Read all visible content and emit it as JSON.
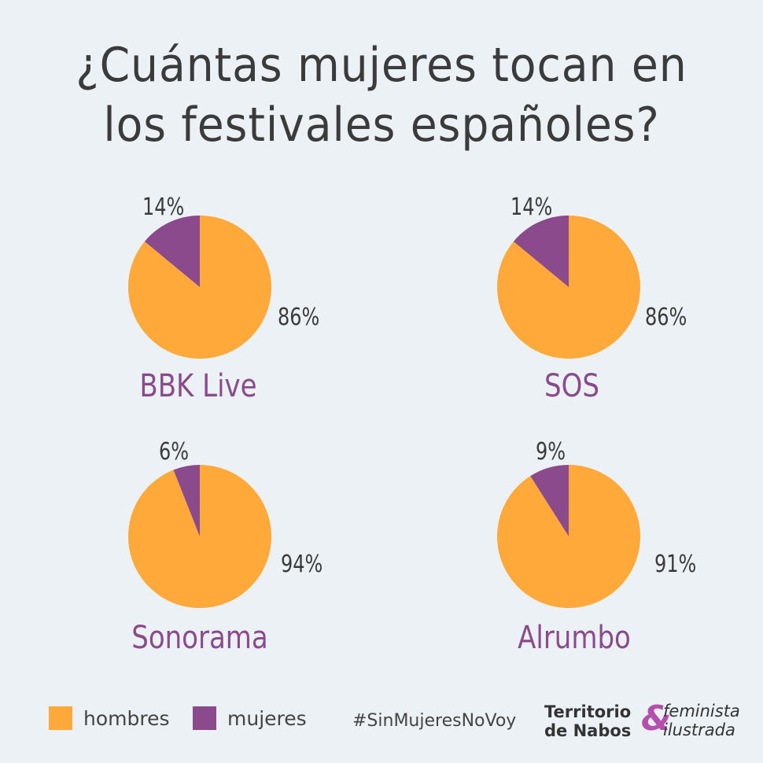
{
  "title_line1": "¿Cuántas mujeres tocan en",
  "title_line2": "los festivales españoles?",
  "colors": {
    "hombres": "#FFA93A",
    "mujeres": "#8B4A8C",
    "background": "#EBF1F5"
  },
  "chart_data": {
    "type": "pie",
    "title": "¿Cuántas mujeres tocan en los festivales españoles?",
    "legend": [
      "hombres",
      "mujeres"
    ],
    "legend_position": "bottom-left",
    "charts": [
      {
        "name": "BBK Live",
        "hombres": 86,
        "mujeres": 14,
        "hombres_label": "86%",
        "mujeres_label": "14%"
      },
      {
        "name": "SOS",
        "hombres": 86,
        "mujeres": 14,
        "hombres_label": "86%",
        "mujeres_label": "14%"
      },
      {
        "name": "Sonorama",
        "hombres": 94,
        "mujeres": 6,
        "hombres_label": "94%",
        "mujeres_label": "6%"
      },
      {
        "name": "Alrumbo",
        "hombres": 91,
        "mujeres": 9,
        "hombres_label": "91%",
        "mujeres_label": "9%"
      }
    ]
  },
  "legend": {
    "hombres": "hombres",
    "mujeres": "mujeres"
  },
  "hashtag": "#SinMujeresNoVoy",
  "logo": {
    "left_line1": "Territorio",
    "left_line2": "de Nabos",
    "amp": "&",
    "right_line1": "feminista",
    "right_line2": "ilustrada"
  }
}
